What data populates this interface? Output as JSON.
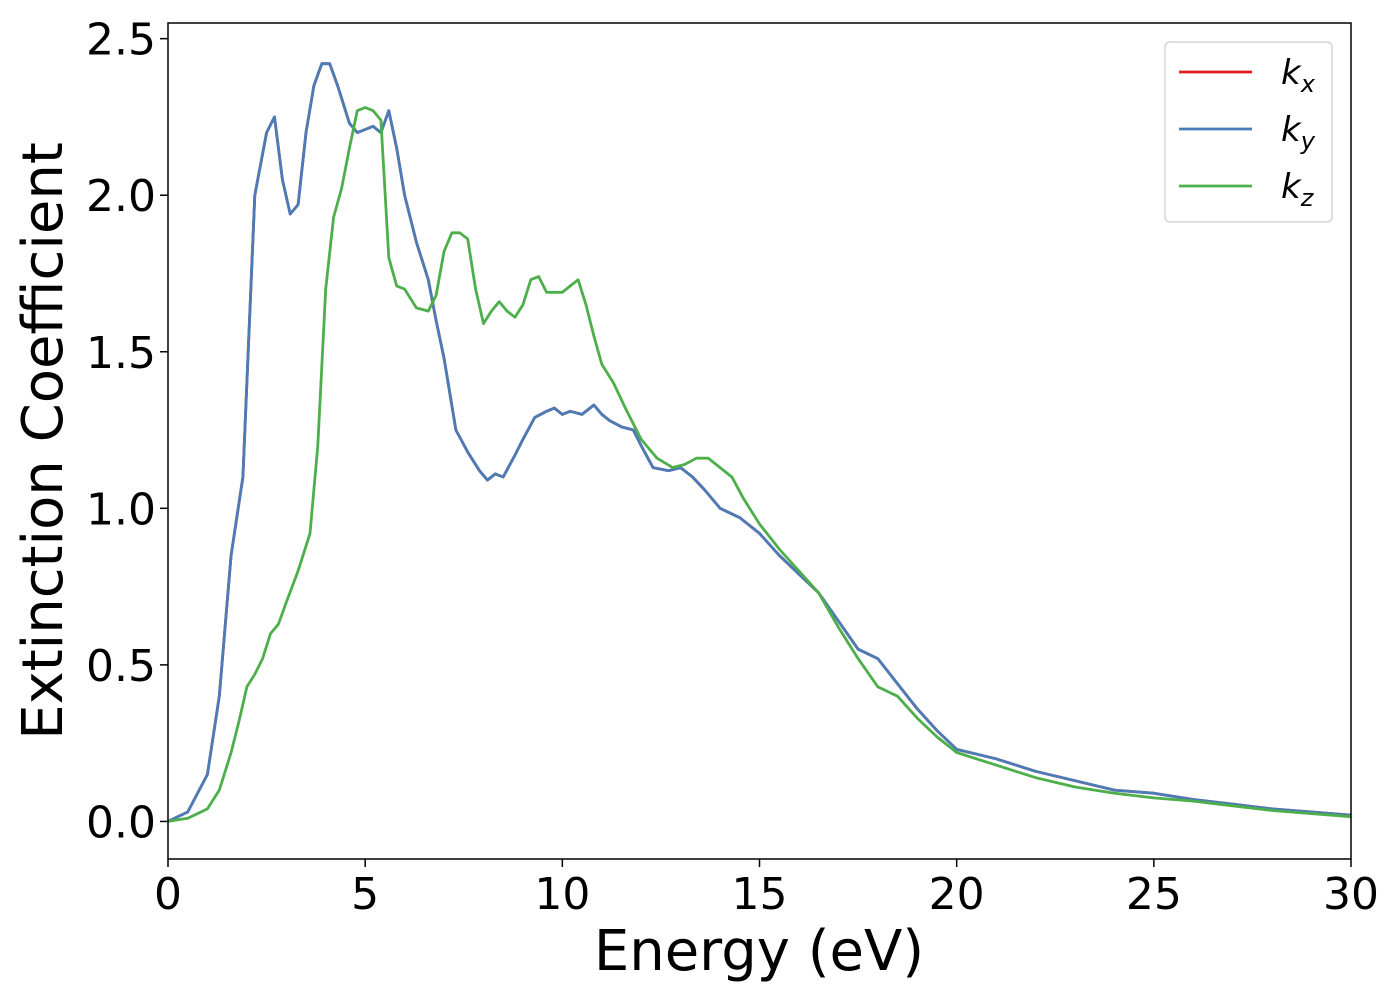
{
  "chart_data": {
    "type": "line",
    "title": "",
    "xlabel": "Energy (eV)",
    "ylabel": "Extinction Coefficient",
    "xlim": [
      0,
      30
    ],
    "ylim": [
      -0.12,
      2.55
    ],
    "grid": false,
    "legend_position": "top-right",
    "x_ticks": [
      0,
      5,
      10,
      15,
      20,
      25,
      30
    ],
    "x_tick_labels": [
      "0",
      "5",
      "10",
      "15",
      "20",
      "25",
      "30"
    ],
    "y_ticks": [
      0.0,
      0.5,
      1.0,
      1.5,
      2.0,
      2.5
    ],
    "y_tick_labels": [
      "0.0",
      "0.5",
      "1.0",
      "1.5",
      "2.0",
      "2.5"
    ],
    "series": [
      {
        "name": "kx",
        "label_main": "k",
        "label_sub": "x",
        "color": "#e41a1c",
        "x": [
          0,
          0.5,
          1.0,
          1.3,
          1.6,
          1.9,
          2.2,
          2.5,
          2.7,
          2.9,
          3.1,
          3.3,
          3.5,
          3.7,
          3.9,
          4.1,
          4.3,
          4.6,
          4.8,
          5.0,
          5.2,
          5.4,
          5.6,
          5.8,
          6.0,
          6.3,
          6.6,
          6.8,
          7.0,
          7.3,
          7.6,
          7.9,
          8.1,
          8.3,
          8.5,
          8.8,
          9.0,
          9.3,
          9.6,
          9.8,
          10.0,
          10.2,
          10.5,
          10.8,
          11.0,
          11.2,
          11.5,
          11.8,
          12.0,
          12.3,
          12.7,
          13.0,
          13.3,
          13.6,
          14.0,
          14.5,
          15.0,
          15.5,
          16.0,
          16.5,
          17.0,
          17.5,
          18.0,
          18.5,
          19.0,
          19.5,
          20.0,
          21.0,
          22.0,
          23.0,
          24.0,
          25.0,
          26.0,
          27.0,
          28.0,
          29.0,
          30.0
        ],
        "y": [
          0.0,
          0.03,
          0.15,
          0.4,
          0.85,
          1.1,
          2.0,
          2.2,
          2.25,
          2.05,
          1.94,
          1.97,
          2.2,
          2.35,
          2.42,
          2.42,
          2.35,
          2.23,
          2.2,
          2.21,
          2.22,
          2.2,
          2.27,
          2.15,
          2.0,
          1.85,
          1.73,
          1.6,
          1.48,
          1.25,
          1.18,
          1.12,
          1.09,
          1.11,
          1.1,
          1.17,
          1.22,
          1.29,
          1.31,
          1.32,
          1.3,
          1.31,
          1.3,
          1.33,
          1.3,
          1.28,
          1.26,
          1.25,
          1.2,
          1.13,
          1.12,
          1.13,
          1.1,
          1.06,
          1.0,
          0.97,
          0.92,
          0.85,
          0.79,
          0.73,
          0.64,
          0.55,
          0.52,
          0.44,
          0.36,
          0.29,
          0.23,
          0.2,
          0.16,
          0.13,
          0.1,
          0.09,
          0.07,
          0.055,
          0.04,
          0.03,
          0.02
        ]
      },
      {
        "name": "ky",
        "label_main": "k",
        "label_sub": "y",
        "color": "#4a7db8",
        "x": [
          0,
          0.5,
          1.0,
          1.3,
          1.6,
          1.9,
          2.2,
          2.5,
          2.7,
          2.9,
          3.1,
          3.3,
          3.5,
          3.7,
          3.9,
          4.1,
          4.3,
          4.6,
          4.8,
          5.0,
          5.2,
          5.4,
          5.6,
          5.8,
          6.0,
          6.3,
          6.6,
          6.8,
          7.0,
          7.3,
          7.6,
          7.9,
          8.1,
          8.3,
          8.5,
          8.8,
          9.0,
          9.3,
          9.6,
          9.8,
          10.0,
          10.2,
          10.5,
          10.8,
          11.0,
          11.2,
          11.5,
          11.8,
          12.0,
          12.3,
          12.7,
          13.0,
          13.3,
          13.6,
          14.0,
          14.5,
          15.0,
          15.5,
          16.0,
          16.5,
          17.0,
          17.5,
          18.0,
          18.5,
          19.0,
          19.5,
          20.0,
          21.0,
          22.0,
          23.0,
          24.0,
          25.0,
          26.0,
          27.0,
          28.0,
          29.0,
          30.0
        ],
        "y": [
          0.0,
          0.03,
          0.15,
          0.4,
          0.85,
          1.1,
          2.0,
          2.2,
          2.25,
          2.05,
          1.94,
          1.97,
          2.2,
          2.35,
          2.42,
          2.42,
          2.35,
          2.23,
          2.2,
          2.21,
          2.22,
          2.2,
          2.27,
          2.15,
          2.0,
          1.85,
          1.73,
          1.6,
          1.48,
          1.25,
          1.18,
          1.12,
          1.09,
          1.11,
          1.1,
          1.17,
          1.22,
          1.29,
          1.31,
          1.32,
          1.3,
          1.31,
          1.3,
          1.33,
          1.3,
          1.28,
          1.26,
          1.25,
          1.2,
          1.13,
          1.12,
          1.13,
          1.1,
          1.06,
          1.0,
          0.97,
          0.92,
          0.85,
          0.79,
          0.73,
          0.64,
          0.55,
          0.52,
          0.44,
          0.36,
          0.29,
          0.23,
          0.2,
          0.16,
          0.13,
          0.1,
          0.09,
          0.07,
          0.055,
          0.04,
          0.03,
          0.02
        ]
      },
      {
        "name": "kz",
        "label_main": "k",
        "label_sub": "z",
        "color": "#4daf4a",
        "x": [
          0,
          0.5,
          1.0,
          1.3,
          1.6,
          1.8,
          2.0,
          2.2,
          2.4,
          2.6,
          2.8,
          3.0,
          3.3,
          3.6,
          3.8,
          4.0,
          4.2,
          4.4,
          4.6,
          4.8,
          5.0,
          5.2,
          5.4,
          5.6,
          5.8,
          6.0,
          6.3,
          6.6,
          6.8,
          7.0,
          7.2,
          7.4,
          7.6,
          7.8,
          8.0,
          8.2,
          8.4,
          8.6,
          8.8,
          9.0,
          9.2,
          9.4,
          9.6,
          9.8,
          10.0,
          10.2,
          10.4,
          10.6,
          10.8,
          11.0,
          11.3,
          11.6,
          12.0,
          12.4,
          12.8,
          13.1,
          13.4,
          13.7,
          14.0,
          14.3,
          14.6,
          15.0,
          15.5,
          16.0,
          16.5,
          17.0,
          17.5,
          18.0,
          18.5,
          19.0,
          19.5,
          20.0,
          21.0,
          22.0,
          23.0,
          24.0,
          25.0,
          26.0,
          27.0,
          28.0,
          29.0,
          30.0
        ],
        "y": [
          0.0,
          0.01,
          0.04,
          0.1,
          0.22,
          0.32,
          0.43,
          0.47,
          0.52,
          0.6,
          0.63,
          0.7,
          0.8,
          0.92,
          1.2,
          1.7,
          1.93,
          2.02,
          2.15,
          2.27,
          2.28,
          2.27,
          2.24,
          1.8,
          1.71,
          1.7,
          1.64,
          1.63,
          1.68,
          1.82,
          1.88,
          1.88,
          1.86,
          1.7,
          1.59,
          1.63,
          1.66,
          1.63,
          1.61,
          1.65,
          1.73,
          1.74,
          1.69,
          1.69,
          1.69,
          1.71,
          1.73,
          1.65,
          1.55,
          1.46,
          1.4,
          1.32,
          1.22,
          1.16,
          1.13,
          1.14,
          1.16,
          1.16,
          1.13,
          1.1,
          1.03,
          0.95,
          0.87,
          0.8,
          0.73,
          0.62,
          0.52,
          0.43,
          0.4,
          0.33,
          0.27,
          0.22,
          0.18,
          0.14,
          0.11,
          0.09,
          0.075,
          0.065,
          0.05,
          0.035,
          0.025,
          0.015
        ]
      }
    ]
  }
}
